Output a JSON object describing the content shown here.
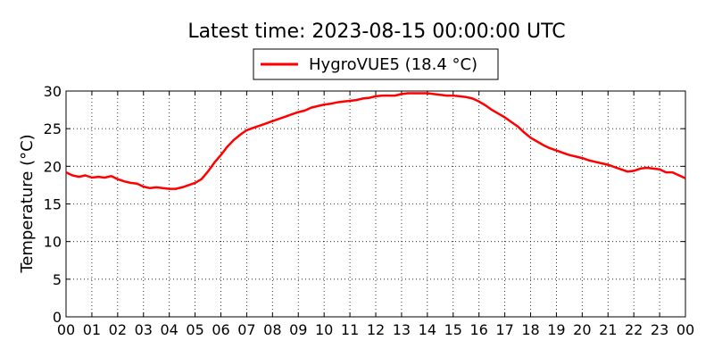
{
  "chart_data": {
    "type": "line",
    "title": "Latest time: 2023-08-15 00:00:00 UTC",
    "xlabel": "",
    "ylabel": "Temperature (°C)",
    "xlim": [
      0,
      24
    ],
    "ylim": [
      0,
      30
    ],
    "x_ticks": [
      {
        "value": 0,
        "label": "00"
      },
      {
        "value": 1,
        "label": "01"
      },
      {
        "value": 2,
        "label": "02"
      },
      {
        "value": 3,
        "label": "03"
      },
      {
        "value": 4,
        "label": "04"
      },
      {
        "value": 5,
        "label": "05"
      },
      {
        "value": 6,
        "label": "06"
      },
      {
        "value": 7,
        "label": "07"
      },
      {
        "value": 8,
        "label": "08"
      },
      {
        "value": 9,
        "label": "09"
      },
      {
        "value": 10,
        "label": "10"
      },
      {
        "value": 11,
        "label": "11"
      },
      {
        "value": 12,
        "label": "12"
      },
      {
        "value": 13,
        "label": "13"
      },
      {
        "value": 14,
        "label": "14"
      },
      {
        "value": 15,
        "label": "15"
      },
      {
        "value": 16,
        "label": "16"
      },
      {
        "value": 17,
        "label": "17"
      },
      {
        "value": 18,
        "label": "18"
      },
      {
        "value": 19,
        "label": "19"
      },
      {
        "value": 20,
        "label": "20"
      },
      {
        "value": 21,
        "label": "21"
      },
      {
        "value": 22,
        "label": "22"
      },
      {
        "value": 23,
        "label": "23"
      },
      {
        "value": 24,
        "label": "00"
      }
    ],
    "y_ticks": [
      {
        "value": 0,
        "label": "0"
      },
      {
        "value": 5,
        "label": "5"
      },
      {
        "value": 10,
        "label": "10"
      },
      {
        "value": 15,
        "label": "15"
      },
      {
        "value": 20,
        "label": "20"
      },
      {
        "value": 25,
        "label": "25"
      },
      {
        "value": 30,
        "label": "30"
      }
    ],
    "grid": true,
    "legend_position": "top-center",
    "series": [
      {
        "name": "HygroVUE5 (18.4 °C)",
        "color": "#ff0000",
        "x": [
          0,
          0.25,
          0.5,
          0.75,
          1,
          1.25,
          1.5,
          1.75,
          2,
          2.25,
          2.5,
          2.75,
          3,
          3.25,
          3.5,
          3.75,
          4,
          4.25,
          4.5,
          4.75,
          5,
          5.25,
          5.5,
          5.75,
          6,
          6.25,
          6.5,
          6.75,
          7,
          7.25,
          7.5,
          7.75,
          8,
          8.25,
          8.5,
          8.75,
          9,
          9.25,
          9.5,
          9.75,
          10,
          10.25,
          10.5,
          10.75,
          11,
          11.25,
          11.5,
          11.75,
          12,
          12.25,
          12.5,
          12.75,
          13,
          13.25,
          13.5,
          13.75,
          14,
          14.25,
          14.5,
          14.75,
          15,
          15.25,
          15.5,
          15.75,
          16,
          16.25,
          16.5,
          16.75,
          17,
          17.25,
          17.5,
          17.75,
          18,
          18.25,
          18.5,
          18.75,
          19,
          19.25,
          19.5,
          19.75,
          20,
          20.25,
          20.5,
          20.75,
          21,
          21.25,
          21.5,
          21.75,
          22,
          22.25,
          22.5,
          22.75,
          23,
          23.25,
          23.5,
          23.75,
          24
        ],
        "y": [
          19.2,
          18.8,
          18.6,
          18.8,
          18.5,
          18.6,
          18.5,
          18.7,
          18.3,
          18.0,
          17.8,
          17.7,
          17.3,
          17.1,
          17.2,
          17.1,
          17.0,
          17.0,
          17.2,
          17.5,
          17.8,
          18.3,
          19.3,
          20.5,
          21.5,
          22.6,
          23.5,
          24.2,
          24.8,
          25.1,
          25.4,
          25.7,
          26.0,
          26.3,
          26.6,
          26.9,
          27.2,
          27.4,
          27.8,
          28.0,
          28.2,
          28.3,
          28.5,
          28.6,
          28.7,
          28.8,
          29.0,
          29.1,
          29.3,
          29.4,
          29.4,
          29.4,
          29.6,
          29.7,
          29.7,
          29.7,
          29.7,
          29.6,
          29.5,
          29.4,
          29.4,
          29.3,
          29.2,
          29.0,
          28.6,
          28.1,
          27.5,
          27.0,
          26.5,
          25.9,
          25.3,
          24.5,
          23.8,
          23.3,
          22.8,
          22.4,
          22.1,
          21.8,
          21.5,
          21.3,
          21.1,
          20.8,
          20.6,
          20.4,
          20.2,
          19.9,
          19.6,
          19.3,
          19.4,
          19.7,
          19.8,
          19.7,
          19.6,
          19.2,
          19.2,
          18.8,
          18.4
        ]
      }
    ]
  }
}
